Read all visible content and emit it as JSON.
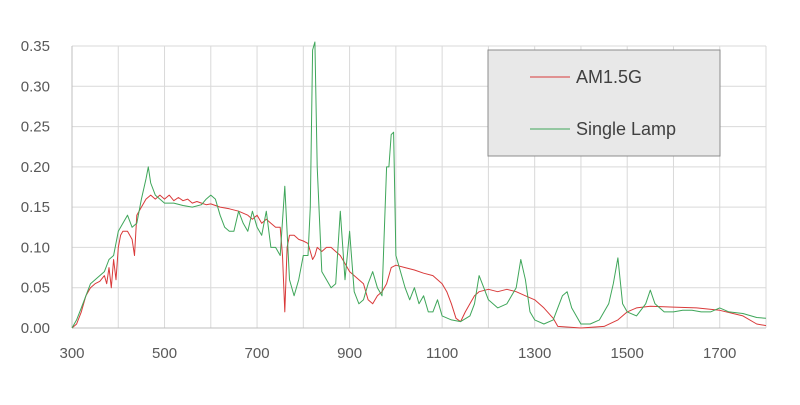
{
  "chart_data": {
    "type": "line",
    "xlim": [
      300,
      1800
    ],
    "ylim": [
      0,
      0.35
    ],
    "x_ticks": [
      300,
      500,
      700,
      900,
      1100,
      1300,
      1500,
      1700
    ],
    "y_ticks": [
      "0.00",
      "0.05",
      "0.10",
      "0.15",
      "0.20",
      "0.25",
      "0.30",
      "0.35"
    ],
    "grid": true,
    "legend_position": "top-right",
    "series": [
      {
        "name": "AM1.5G",
        "color": "#d93a3a",
        "points": [
          [
            300,
            0.0
          ],
          [
            310,
            0.005
          ],
          [
            320,
            0.02
          ],
          [
            330,
            0.04
          ],
          [
            340,
            0.05
          ],
          [
            350,
            0.055
          ],
          [
            360,
            0.058
          ],
          [
            370,
            0.065
          ],
          [
            375,
            0.055
          ],
          [
            380,
            0.075
          ],
          [
            385,
            0.05
          ],
          [
            390,
            0.085
          ],
          [
            395,
            0.06
          ],
          [
            400,
            0.1
          ],
          [
            405,
            0.115
          ],
          [
            410,
            0.12
          ],
          [
            420,
            0.12
          ],
          [
            430,
            0.11
          ],
          [
            435,
            0.09
          ],
          [
            440,
            0.14
          ],
          [
            450,
            0.15
          ],
          [
            460,
            0.16
          ],
          [
            470,
            0.165
          ],
          [
            480,
            0.16
          ],
          [
            490,
            0.165
          ],
          [
            500,
            0.16
          ],
          [
            510,
            0.165
          ],
          [
            520,
            0.158
          ],
          [
            530,
            0.162
          ],
          [
            540,
            0.158
          ],
          [
            550,
            0.16
          ],
          [
            560,
            0.155
          ],
          [
            570,
            0.157
          ],
          [
            580,
            0.155
          ],
          [
            590,
            0.153
          ],
          [
            600,
            0.154
          ],
          [
            620,
            0.15
          ],
          [
            640,
            0.148
          ],
          [
            660,
            0.145
          ],
          [
            680,
            0.14
          ],
          [
            690,
            0.135
          ],
          [
            700,
            0.14
          ],
          [
            710,
            0.13
          ],
          [
            720,
            0.135
          ],
          [
            730,
            0.13
          ],
          [
            740,
            0.125
          ],
          [
            750,
            0.125
          ],
          [
            755,
            0.09
          ],
          [
            760,
            0.02
          ],
          [
            765,
            0.1
          ],
          [
            770,
            0.115
          ],
          [
            780,
            0.115
          ],
          [
            790,
            0.11
          ],
          [
            800,
            0.108
          ],
          [
            810,
            0.105
          ],
          [
            820,
            0.085
          ],
          [
            825,
            0.09
          ],
          [
            830,
            0.1
          ],
          [
            840,
            0.095
          ],
          [
            850,
            0.1
          ],
          [
            860,
            0.1
          ],
          [
            870,
            0.095
          ],
          [
            880,
            0.09
          ],
          [
            890,
            0.08
          ],
          [
            900,
            0.07
          ],
          [
            910,
            0.065
          ],
          [
            920,
            0.06
          ],
          [
            930,
            0.055
          ],
          [
            940,
            0.035
          ],
          [
            950,
            0.03
          ],
          [
            960,
            0.04
          ],
          [
            970,
            0.045
          ],
          [
            980,
            0.055
          ],
          [
            990,
            0.075
          ],
          [
            1000,
            0.078
          ],
          [
            1020,
            0.075
          ],
          [
            1040,
            0.072
          ],
          [
            1060,
            0.068
          ],
          [
            1080,
            0.065
          ],
          [
            1100,
            0.055
          ],
          [
            1110,
            0.045
          ],
          [
            1120,
            0.03
          ],
          [
            1130,
            0.012
          ],
          [
            1140,
            0.008
          ],
          [
            1150,
            0.02
          ],
          [
            1160,
            0.03
          ],
          [
            1170,
            0.04
          ],
          [
            1180,
            0.045
          ],
          [
            1200,
            0.048
          ],
          [
            1220,
            0.045
          ],
          [
            1240,
            0.048
          ],
          [
            1260,
            0.045
          ],
          [
            1280,
            0.04
          ],
          [
            1300,
            0.035
          ],
          [
            1320,
            0.025
          ],
          [
            1340,
            0.012
          ],
          [
            1350,
            0.002
          ],
          [
            1400,
            0.0
          ],
          [
            1450,
            0.002
          ],
          [
            1480,
            0.01
          ],
          [
            1500,
            0.02
          ],
          [
            1520,
            0.025
          ],
          [
            1550,
            0.027
          ],
          [
            1600,
            0.026
          ],
          [
            1650,
            0.025
          ],
          [
            1700,
            0.022
          ],
          [
            1750,
            0.015
          ],
          [
            1780,
            0.005
          ],
          [
            1800,
            0.003
          ]
        ]
      },
      {
        "name": "Single Lamp",
        "color": "#3fa65a",
        "points": [
          [
            300,
            0.0
          ],
          [
            310,
            0.01
          ],
          [
            320,
            0.025
          ],
          [
            330,
            0.04
          ],
          [
            340,
            0.055
          ],
          [
            350,
            0.06
          ],
          [
            360,
            0.065
          ],
          [
            370,
            0.07
          ],
          [
            380,
            0.085
          ],
          [
            390,
            0.09
          ],
          [
            400,
            0.12
          ],
          [
            410,
            0.13
          ],
          [
            420,
            0.14
          ],
          [
            430,
            0.125
          ],
          [
            440,
            0.13
          ],
          [
            450,
            0.16
          ],
          [
            460,
            0.185
          ],
          [
            465,
            0.2
          ],
          [
            470,
            0.18
          ],
          [
            480,
            0.165
          ],
          [
            490,
            0.16
          ],
          [
            500,
            0.155
          ],
          [
            520,
            0.155
          ],
          [
            540,
            0.152
          ],
          [
            560,
            0.15
          ],
          [
            580,
            0.153
          ],
          [
            590,
            0.16
          ],
          [
            600,
            0.165
          ],
          [
            610,
            0.16
          ],
          [
            620,
            0.14
          ],
          [
            630,
            0.125
          ],
          [
            640,
            0.12
          ],
          [
            650,
            0.12
          ],
          [
            660,
            0.145
          ],
          [
            670,
            0.13
          ],
          [
            680,
            0.12
          ],
          [
            690,
            0.145
          ],
          [
            700,
            0.125
          ],
          [
            710,
            0.115
          ],
          [
            720,
            0.145
          ],
          [
            730,
            0.1
          ],
          [
            740,
            0.1
          ],
          [
            750,
            0.09
          ],
          [
            760,
            0.176
          ],
          [
            770,
            0.06
          ],
          [
            780,
            0.04
          ],
          [
            790,
            0.06
          ],
          [
            800,
            0.09
          ],
          [
            810,
            0.09
          ],
          [
            815,
            0.15
          ],
          [
            820,
            0.345
          ],
          [
            825,
            0.355
          ],
          [
            830,
            0.2
          ],
          [
            840,
            0.07
          ],
          [
            850,
            0.06
          ],
          [
            860,
            0.05
          ],
          [
            870,
            0.055
          ],
          [
            880,
            0.145
          ],
          [
            890,
            0.06
          ],
          [
            900,
            0.12
          ],
          [
            910,
            0.045
          ],
          [
            920,
            0.03
          ],
          [
            930,
            0.035
          ],
          [
            940,
            0.055
          ],
          [
            950,
            0.07
          ],
          [
            960,
            0.05
          ],
          [
            970,
            0.04
          ],
          [
            980,
            0.2
          ],
          [
            985,
            0.2
          ],
          [
            990,
            0.24
          ],
          [
            995,
            0.243
          ],
          [
            1000,
            0.09
          ],
          [
            1010,
            0.07
          ],
          [
            1020,
            0.05
          ],
          [
            1030,
            0.035
          ],
          [
            1040,
            0.05
          ],
          [
            1050,
            0.03
          ],
          [
            1060,
            0.04
          ],
          [
            1070,
            0.02
          ],
          [
            1080,
            0.02
          ],
          [
            1090,
            0.035
          ],
          [
            1100,
            0.015
          ],
          [
            1120,
            0.01
          ],
          [
            1140,
            0.008
          ],
          [
            1160,
            0.015
          ],
          [
            1170,
            0.03
          ],
          [
            1180,
            0.065
          ],
          [
            1190,
            0.05
          ],
          [
            1200,
            0.035
          ],
          [
            1220,
            0.025
          ],
          [
            1240,
            0.03
          ],
          [
            1260,
            0.05
          ],
          [
            1270,
            0.085
          ],
          [
            1280,
            0.06
          ],
          [
            1290,
            0.02
          ],
          [
            1300,
            0.01
          ],
          [
            1320,
            0.005
          ],
          [
            1340,
            0.01
          ],
          [
            1360,
            0.04
          ],
          [
            1370,
            0.045
          ],
          [
            1380,
            0.025
          ],
          [
            1400,
            0.005
          ],
          [
            1420,
            0.005
          ],
          [
            1440,
            0.01
          ],
          [
            1460,
            0.03
          ],
          [
            1470,
            0.055
          ],
          [
            1480,
            0.087
          ],
          [
            1490,
            0.03
          ],
          [
            1500,
            0.02
          ],
          [
            1520,
            0.015
          ],
          [
            1540,
            0.03
          ],
          [
            1550,
            0.047
          ],
          [
            1560,
            0.03
          ],
          [
            1580,
            0.02
          ],
          [
            1600,
            0.02
          ],
          [
            1620,
            0.022
          ],
          [
            1640,
            0.022
          ],
          [
            1660,
            0.02
          ],
          [
            1680,
            0.02
          ],
          [
            1700,
            0.025
          ],
          [
            1720,
            0.02
          ],
          [
            1750,
            0.018
          ],
          [
            1780,
            0.013
          ],
          [
            1800,
            0.012
          ]
        ]
      }
    ]
  }
}
